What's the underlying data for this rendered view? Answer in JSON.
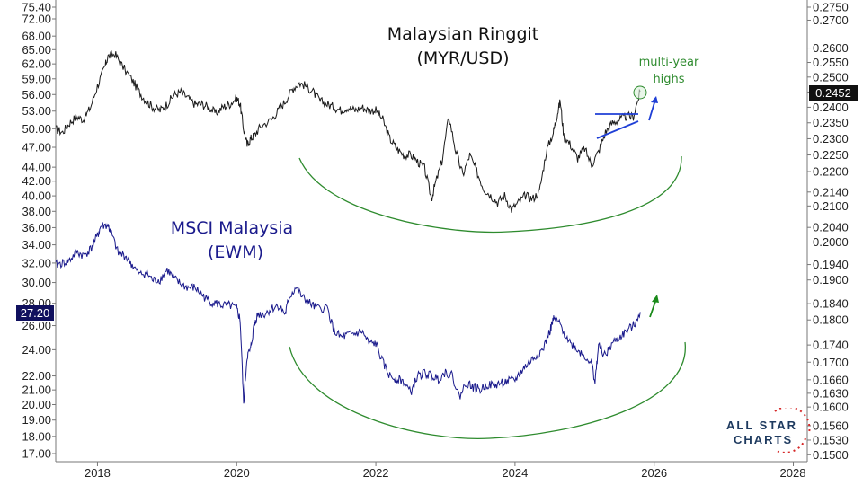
{
  "chart_data": {
    "type": "line",
    "x_axis": {
      "tick_labels": [
        "2018",
        "2020",
        "2022",
        "2024",
        "2026",
        "2028"
      ],
      "tick_values": [
        2018,
        2020,
        2022,
        2024,
        2026,
        2028
      ],
      "range": [
        2017.4,
        2028.2
      ]
    },
    "left_axis": {
      "tick_labels": [
        "75.40",
        "72.00",
        "68.00",
        "65.00",
        "62.00",
        "59.00",
        "56.00",
        "53.00",
        "50.00",
        "47.00",
        "44.00",
        "42.00",
        "40.00",
        "38.00",
        "36.00",
        "34.00",
        "32.00",
        "30.00",
        "28.00",
        "26.00",
        "24.00",
        "22.00",
        "21.00",
        "20.00",
        "19.00",
        "18.00",
        "17.00"
      ],
      "tick_values": [
        75.4,
        72,
        68,
        65,
        62,
        59,
        56,
        53,
        50,
        47,
        44,
        42,
        40,
        38,
        36,
        34,
        32,
        30,
        28,
        26,
        24,
        22,
        21,
        20,
        19,
        18,
        17
      ],
      "scale": "log",
      "range": [
        16.55,
        76.2
      ],
      "current_value_label": "27.20",
      "current_value": 27.2
    },
    "right_axis": {
      "tick_labels": [
        "0.2750",
        "0.2700",
        "0.2600",
        "0.2550",
        "0.2500",
        "0.2450",
        "0.2400",
        "0.2350",
        "0.2300",
        "0.2250",
        "0.2200",
        "0.2140",
        "0.2100",
        "0.2040",
        "0.2000",
        "0.1940",
        "0.1900",
        "0.1840",
        "0.1800",
        "0.1740",
        "0.1700",
        "0.1660",
        "0.1630",
        "0.1600",
        "0.1560",
        "0.1530",
        "0.1500"
      ],
      "tick_values": [
        0.275,
        0.27,
        0.26,
        0.255,
        0.25,
        0.245,
        0.24,
        0.235,
        0.23,
        0.225,
        0.22,
        0.214,
        0.21,
        0.204,
        0.2,
        0.194,
        0.19,
        0.184,
        0.18,
        0.174,
        0.17,
        0.166,
        0.163,
        0.16,
        0.156,
        0.153,
        0.15
      ],
      "scale": "log",
      "range": [
        0.1486,
        0.2768
      ],
      "current_value_label": "0.2452",
      "current_value": 0.2452
    },
    "series": [
      {
        "name": "Malaysian Ringgit (MYR/USD)",
        "axis": "right",
        "color": "#1a1a1a",
        "x": [
          2017.4,
          2017.5,
          2017.6,
          2017.7,
          2017.8,
          2017.9,
          2018.0,
          2018.1,
          2018.15,
          2018.25,
          2018.35,
          2018.5,
          2018.6,
          2018.7,
          2018.8,
          2018.9,
          2019.0,
          2019.1,
          2019.2,
          2019.3,
          2019.4,
          2019.5,
          2019.6,
          2019.7,
          2019.8,
          2019.9,
          2020.0,
          2020.05,
          2020.1,
          2020.15,
          2020.2,
          2020.25,
          2020.35,
          2020.5,
          2020.6,
          2020.7,
          2020.8,
          2020.9,
          2021.0,
          2021.1,
          2021.2,
          2021.3,
          2021.4,
          2021.5,
          2021.6,
          2021.7,
          2021.8,
          2021.9,
          2022.0,
          2022.1,
          2022.2,
          2022.3,
          2022.4,
          2022.5,
          2022.6,
          2022.7,
          2022.8,
          2022.85,
          2022.95,
          2023.05,
          2023.15,
          2023.25,
          2023.35,
          2023.45,
          2023.55,
          2023.65,
          2023.75,
          2023.85,
          2023.95,
          2024.05,
          2024.15,
          2024.25,
          2024.35,
          2024.45,
          2024.55,
          2024.6,
          2024.65,
          2024.7,
          2024.8,
          2024.9,
          2025.0,
          2025.1,
          2025.2,
          2025.3,
          2025.4,
          2025.5,
          2025.6,
          2025.7,
          2025.8
        ],
        "values": [
          0.233,
          0.232,
          0.235,
          0.237,
          0.236,
          0.24,
          0.247,
          0.253,
          0.257,
          0.258,
          0.254,
          0.249,
          0.245,
          0.242,
          0.24,
          0.239,
          0.241,
          0.244,
          0.245,
          0.243,
          0.241,
          0.241,
          0.24,
          0.238,
          0.24,
          0.241,
          0.243,
          0.241,
          0.233,
          0.228,
          0.23,
          0.231,
          0.234,
          0.236,
          0.239,
          0.242,
          0.246,
          0.248,
          0.247,
          0.245,
          0.242,
          0.241,
          0.24,
          0.239,
          0.24,
          0.239,
          0.24,
          0.239,
          0.239,
          0.236,
          0.23,
          0.227,
          0.225,
          0.225,
          0.223,
          0.221,
          0.212,
          0.216,
          0.223,
          0.237,
          0.226,
          0.219,
          0.225,
          0.22,
          0.215,
          0.213,
          0.211,
          0.213,
          0.209,
          0.211,
          0.213,
          0.212,
          0.214,
          0.226,
          0.232,
          0.237,
          0.242,
          0.231,
          0.228,
          0.224,
          0.227,
          0.222,
          0.226,
          0.232,
          0.235,
          0.236,
          0.237,
          0.237,
          0.2452
        ]
      },
      {
        "name": "MSCI Malaysia (EWM)",
        "axis": "left",
        "color": "#1a1a8c",
        "x": [
          2017.4,
          2017.5,
          2017.6,
          2017.7,
          2017.8,
          2017.9,
          2018.0,
          2018.05,
          2018.15,
          2018.2,
          2018.3,
          2018.4,
          2018.5,
          2018.6,
          2018.7,
          2018.8,
          2018.9,
          2019.0,
          2019.1,
          2019.2,
          2019.3,
          2019.4,
          2019.5,
          2019.6,
          2019.7,
          2019.8,
          2019.9,
          2020.0,
          2020.05,
          2020.1,
          2020.15,
          2020.2,
          2020.25,
          2020.3,
          2020.4,
          2020.5,
          2020.6,
          2020.7,
          2020.75,
          2020.85,
          2020.95,
          2021.05,
          2021.15,
          2021.3,
          2021.4,
          2021.5,
          2021.6,
          2021.7,
          2021.8,
          2021.9,
          2022.0,
          2022.1,
          2022.2,
          2022.3,
          2022.4,
          2022.5,
          2022.6,
          2022.7,
          2022.8,
          2022.9,
          2023.0,
          2023.1,
          2023.2,
          2023.3,
          2023.4,
          2023.5,
          2023.6,
          2023.7,
          2023.8,
          2023.9,
          2024.0,
          2024.1,
          2024.2,
          2024.3,
          2024.4,
          2024.5,
          2024.55,
          2024.6,
          2024.7,
          2024.8,
          2024.9,
          2025.0,
          2025.1,
          2025.15,
          2025.2,
          2025.3,
          2025.4,
          2025.5,
          2025.6,
          2025.7,
          2025.8
        ],
        "values": [
          31.8,
          32.0,
          32.3,
          33.2,
          32.8,
          33.5,
          35.0,
          36.2,
          36.3,
          35.3,
          33.0,
          32.8,
          31.8,
          30.8,
          31.0,
          30.2,
          30.3,
          31.3,
          30.4,
          29.8,
          29.5,
          29.5,
          28.8,
          28.2,
          28.0,
          27.8,
          27.8,
          27.5,
          26.5,
          20.0,
          23.5,
          24.0,
          26.0,
          27.0,
          27.0,
          27.5,
          27.8,
          27.0,
          28.5,
          29.5,
          28.5,
          28.0,
          27.5,
          27.6,
          25.5,
          25.0,
          25.2,
          25.3,
          25.5,
          24.5,
          24.5,
          23.0,
          22.0,
          21.8,
          21.6,
          20.8,
          22.0,
          22.2,
          22.0,
          21.8,
          22.3,
          22.0,
          20.5,
          21.5,
          21.2,
          21.0,
          21.4,
          21.3,
          21.5,
          21.6,
          21.7,
          22.4,
          23.0,
          23.5,
          24.0,
          25.5,
          26.5,
          26.5,
          25.5,
          24.5,
          24.0,
          23.5,
          23.0,
          21.5,
          24.3,
          23.5,
          24.5,
          25.0,
          25.5,
          26.0,
          27.2
        ]
      }
    ],
    "annotations": {
      "top_title_line1": "Malaysian Ringgit",
      "top_title_line2": "(MYR/USD)",
      "bottom_title_line1": "MSCI Malaysia",
      "bottom_title_line2": "(EWM)",
      "note_line1": "multi-year",
      "note_line2": "highs"
    },
    "colors": {
      "ringgit_line": "#1a1a1a",
      "ewm_line": "#1a1a8c",
      "arc": "#2e8b2e",
      "annotation_green": "#2e8b2e",
      "title_blue": "#1a1a8c",
      "trend_blue": "#1f3fd6",
      "label_bg": "#10105e"
    }
  },
  "logo": {
    "line1": "ALL STAR",
    "line2": "CHARTS"
  }
}
